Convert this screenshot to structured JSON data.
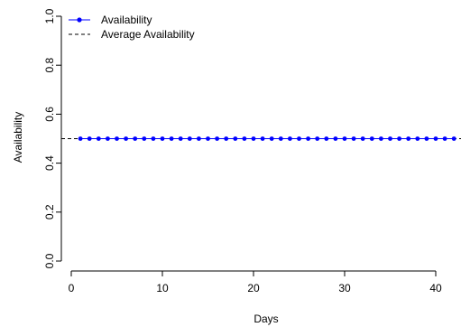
{
  "chart_data": {
    "type": "line",
    "title": "",
    "xlabel": "Days",
    "ylabel": "Availability",
    "xlim": [
      0,
      42
    ],
    "ylim": [
      0,
      1
    ],
    "x_ticks": [
      0,
      10,
      20,
      30,
      40
    ],
    "y_ticks": [
      0.0,
      0.2,
      0.4,
      0.6,
      0.8,
      1.0
    ],
    "x_tick_labels": [
      "0",
      "10",
      "20",
      "30",
      "40"
    ],
    "y_tick_labels": [
      "0.0",
      "0.2",
      "0.4",
      "0.6",
      "0.8",
      "1.0"
    ],
    "grid": false,
    "legend_position": "top-left",
    "series": [
      {
        "name": "Availability",
        "color": "#0000ff",
        "style": "line-with-points",
        "x": [
          1,
          2,
          3,
          4,
          5,
          6,
          7,
          8,
          9,
          10,
          11,
          12,
          13,
          14,
          15,
          16,
          17,
          18,
          19,
          20,
          21,
          22,
          23,
          24,
          25,
          26,
          27,
          28,
          29,
          30,
          31,
          32,
          33,
          34,
          35,
          36,
          37,
          38,
          39,
          40,
          41,
          42
        ],
        "y": [
          0.5,
          0.5,
          0.5,
          0.5,
          0.5,
          0.5,
          0.5,
          0.5,
          0.5,
          0.5,
          0.5,
          0.5,
          0.5,
          0.5,
          0.5,
          0.5,
          0.5,
          0.5,
          0.5,
          0.5,
          0.5,
          0.5,
          0.5,
          0.5,
          0.5,
          0.5,
          0.5,
          0.5,
          0.5,
          0.5,
          0.5,
          0.5,
          0.5,
          0.5,
          0.5,
          0.5,
          0.5,
          0.5,
          0.5,
          0.5,
          0.5,
          0.5
        ]
      },
      {
        "name": "Average Availability",
        "color": "#000000",
        "style": "dashed-horizontal",
        "y": 0.5
      }
    ]
  }
}
